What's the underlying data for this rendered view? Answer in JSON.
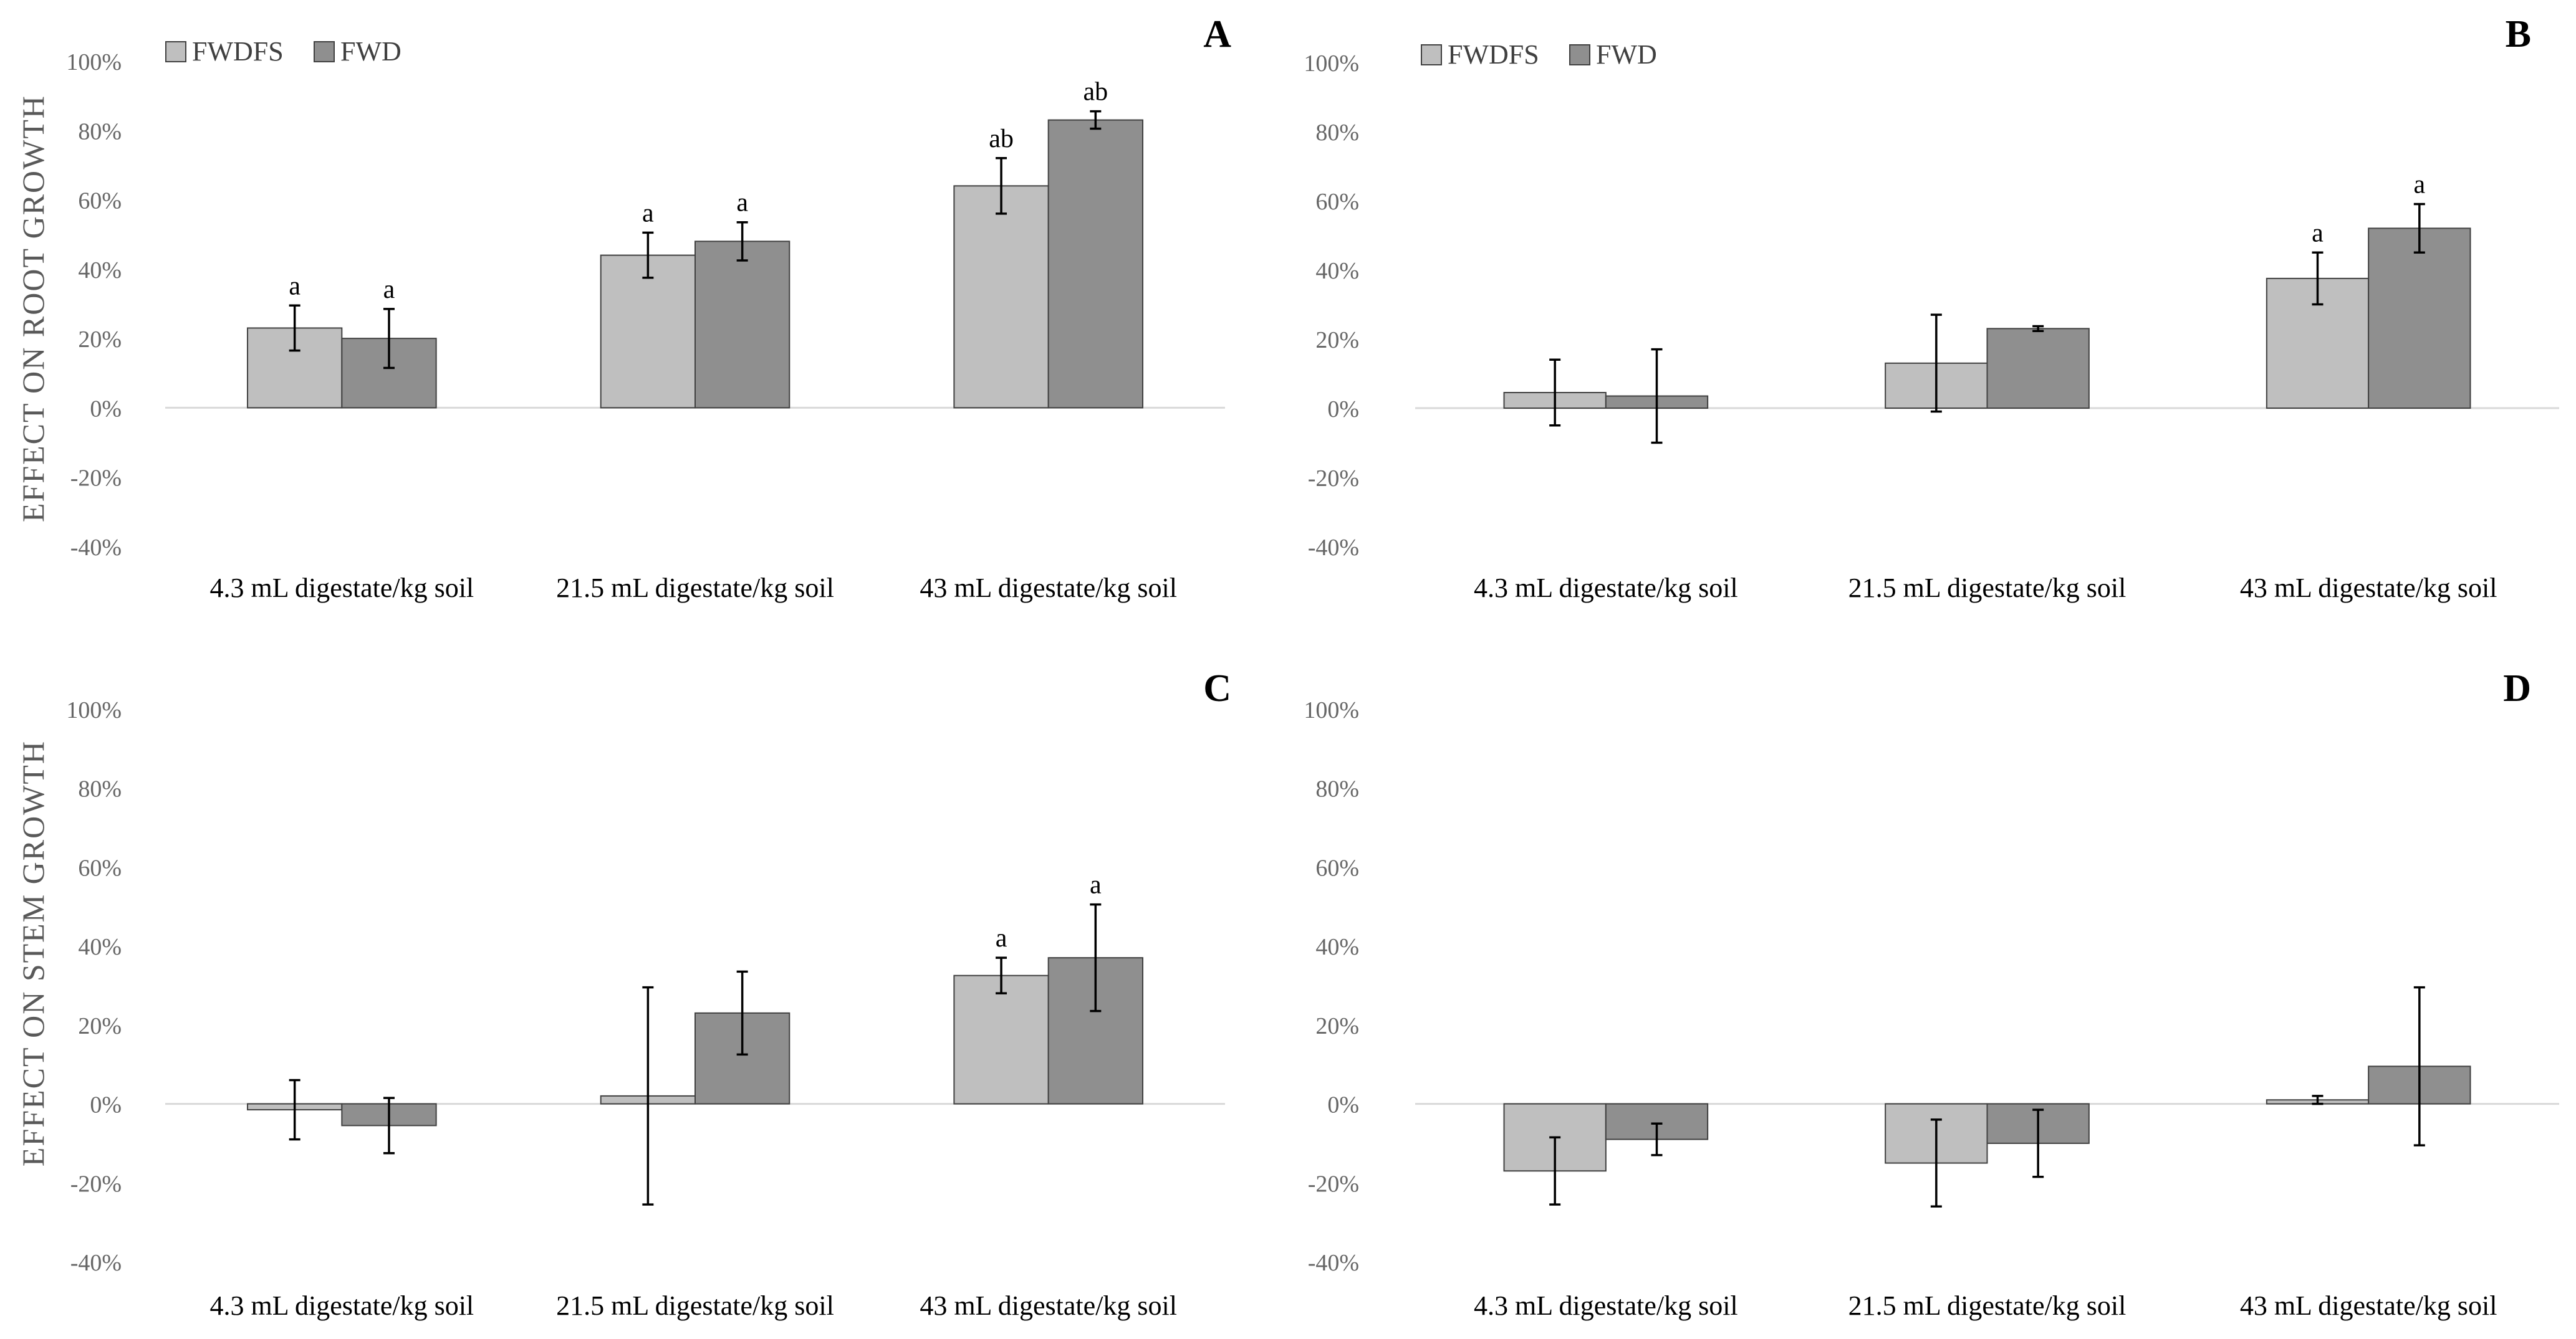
{
  "figure": {
    "y_axis_titles": {
      "top": "EFFECT ON ROOT GROWTH",
      "bottom": "EFFECT ON STEM GROWTH"
    },
    "legend": [
      "FWDFS",
      "FWD"
    ]
  },
  "colors": {
    "FWDFS": "#bfbfbf",
    "FWD": "#8f8f8f",
    "tick": "#666666",
    "axis": "#d9d9d9",
    "text": "#000000",
    "bar_stroke": "#404040"
  },
  "chart_data": [
    {
      "type": "bar",
      "panel": "A",
      "quadrant": "top-left",
      "categories": [
        "4.3 mL digestate/kg soil",
        "21.5 mL digestate/kg soil",
        "43 mL digestate/kg soil"
      ],
      "ylim": [
        -40,
        100
      ],
      "yticks": [
        -40,
        -20,
        0,
        20,
        40,
        60,
        80,
        100
      ],
      "ytick_labels": [
        "-40%",
        "-20%",
        "0%",
        "20%",
        "40%",
        "60%",
        "80%",
        "100%"
      ],
      "legend_position": "top-left",
      "series": [
        {
          "name": "FWDFS",
          "values": [
            23,
            44,
            64
          ],
          "errors": [
            6.5,
            6.5,
            8
          ],
          "labels": [
            "a",
            "a",
            "ab"
          ]
        },
        {
          "name": "FWD",
          "values": [
            20,
            48,
            83
          ],
          "errors": [
            8.5,
            5.5,
            2.5
          ],
          "labels": [
            "a",
            "a",
            "ab"
          ]
        }
      ]
    },
    {
      "type": "bar",
      "panel": "B",
      "quadrant": "top-right",
      "categories": [
        "4.3 mL digestate/kg soil",
        "21.5 mL digestate/kg soil",
        "43 mL digestate/kg soil"
      ],
      "ylim": [
        -40,
        100
      ],
      "yticks": [
        -40,
        -20,
        0,
        20,
        40,
        60,
        80,
        100
      ],
      "ytick_labels": [
        "-40%",
        "-20%",
        "0%",
        "20%",
        "40%",
        "60%",
        "80%",
        "100%"
      ],
      "legend_position": "top-left",
      "series": [
        {
          "name": "FWDFS",
          "values": [
            4.5,
            13,
            37.5
          ],
          "errors": [
            9.5,
            14,
            7.5
          ],
          "labels": [
            "",
            "",
            "a"
          ]
        },
        {
          "name": "FWD",
          "values": [
            3.5,
            23,
            52
          ],
          "errors": [
            13.5,
            0.7,
            7
          ],
          "labels": [
            "",
            "",
            "a"
          ]
        }
      ]
    },
    {
      "type": "bar",
      "panel": "C",
      "quadrant": "bottom-left",
      "categories": [
        "4.3 mL digestate/kg soil",
        "21.5 mL digestate/kg soil",
        "43 mL digestate/kg soil"
      ],
      "ylim": [
        -40,
        100
      ],
      "yticks": [
        -40,
        -20,
        0,
        20,
        40,
        60,
        80,
        100
      ],
      "ytick_labels": [
        "-40%",
        "-20%",
        "0%",
        "20%",
        "40%",
        "60%",
        "80%",
        "100%"
      ],
      "series": [
        {
          "name": "FWDFS",
          "values": [
            -1.5,
            2,
            32.5
          ],
          "errors": [
            7.5,
            27.5,
            4.5
          ],
          "labels": [
            "",
            "",
            "a"
          ]
        },
        {
          "name": "FWD",
          "values": [
            -5.5,
            23,
            37
          ],
          "errors": [
            7,
            10.5,
            13.5
          ],
          "labels": [
            "",
            "",
            "a"
          ]
        }
      ]
    },
    {
      "type": "bar",
      "panel": "D",
      "quadrant": "bottom-right",
      "categories": [
        "4.3 mL digestate/kg soil",
        "21.5 mL digestate/kg soil",
        "43 mL digestate/kg soil"
      ],
      "ylim": [
        -40,
        100
      ],
      "yticks": [
        -40,
        -20,
        0,
        20,
        40,
        60,
        80,
        100
      ],
      "ytick_labels": [
        "-40%",
        "-20%",
        "0%",
        "20%",
        "40%",
        "60%",
        "80%",
        "100%"
      ],
      "series": [
        {
          "name": "FWDFS",
          "values": [
            -17,
            -15,
            1
          ],
          "errors": [
            8.5,
            11,
            1
          ],
          "labels": [
            "",
            "",
            ""
          ]
        },
        {
          "name": "FWD",
          "values": [
            -9,
            -10,
            9.5
          ],
          "errors": [
            4,
            8.5,
            20
          ],
          "labels": [
            "",
            "",
            ""
          ]
        }
      ]
    }
  ]
}
